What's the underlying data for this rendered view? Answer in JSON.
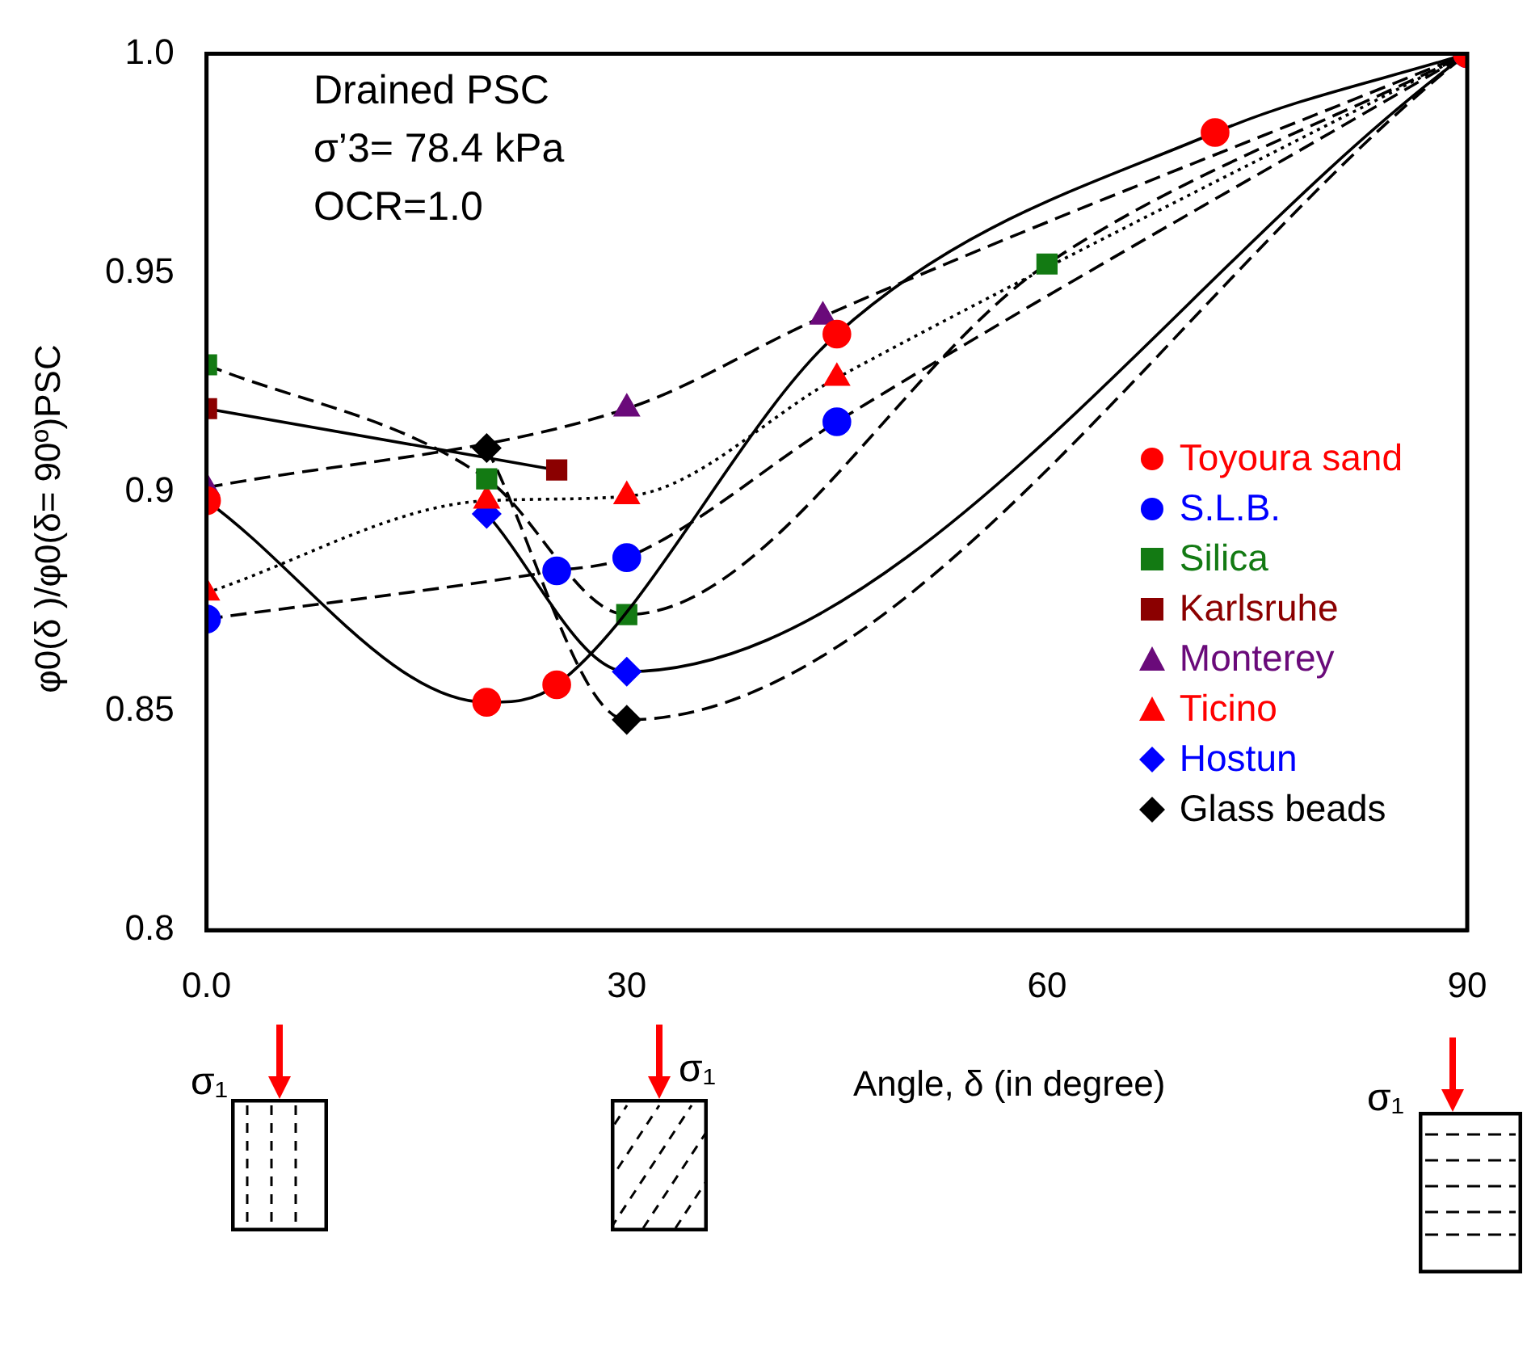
{
  "chart_data": {
    "type": "line",
    "ylabel": "φ0(δ )/φ0(δ= 90º)PSC",
    "xlabel": "Angle, δ (in degree)",
    "xlim": [
      0,
      90
    ],
    "xticks": [
      {
        "value": 0,
        "label": "0.0"
      },
      30,
      60,
      90
    ],
    "ylim": [
      0.8,
      1.0
    ],
    "yticks": [
      0.8,
      0.85,
      0.9,
      0.95,
      {
        "value": 1,
        "label": "1.0"
      }
    ],
    "grid": false,
    "legend": "right",
    "annotations": [
      "Drained PSC",
      "σ’3= 78.4 kPa",
      "OCR=1.0",
      "σ₁",
      "σ₁",
      "σ₁"
    ],
    "series": [
      {
        "name": "Toyoura sand",
        "color": "#ff0000",
        "marker": "circle",
        "line_style": "solid",
        "x": [
          0,
          20,
          25,
          45,
          72,
          90
        ],
        "values": [
          0.898,
          0.852,
          0.856,
          0.936,
          0.982,
          1.0
        ]
      },
      {
        "name": "S.L.B.",
        "color": "#0000ff",
        "marker": "circle",
        "line_style": "dashed",
        "x": [
          0,
          25,
          30,
          45,
          90
        ],
        "values": [
          0.871,
          0.882,
          0.885,
          0.916,
          1.0
        ]
      },
      {
        "name": "Silica",
        "color": "#137a13",
        "marker": "square",
        "line_style": "dashed",
        "x": [
          0,
          20,
          30,
          60,
          90
        ],
        "values": [
          0.929,
          0.903,
          0.872,
          0.952,
          1.0
        ]
      },
      {
        "name": "Karlsruhe",
        "color": "#8b0000",
        "marker": "square",
        "line_style": "solid",
        "x": [
          0,
          25
        ],
        "values": [
          0.919,
          0.905
        ]
      },
      {
        "name": "Monterey",
        "color": "#6a0a7a",
        "marker": "triangle",
        "line_style": "dashed",
        "x": [
          0,
          30,
          44,
          90
        ],
        "values": [
          0.901,
          0.919,
          0.94,
          1.0
        ]
      },
      {
        "name": "Ticino",
        "color": "#ff0000",
        "marker": "triangle",
        "line_style": "dotted",
        "x": [
          0,
          20,
          30,
          45,
          90
        ],
        "values": [
          0.877,
          0.898,
          0.899,
          0.926,
          1.0
        ]
      },
      {
        "name": "Hostun",
        "color": "#0000ff",
        "marker": "diamond",
        "line_style": "solid",
        "x": [
          20,
          30,
          90
        ],
        "values": [
          0.895,
          0.859,
          1.0
        ]
      },
      {
        "name": "Glass beads",
        "color": "#000000",
        "marker": "diamond",
        "line_style": "dashed",
        "x": [
          20,
          30,
          90
        ],
        "values": [
          0.91,
          0.848,
          1.0
        ]
      }
    ]
  }
}
